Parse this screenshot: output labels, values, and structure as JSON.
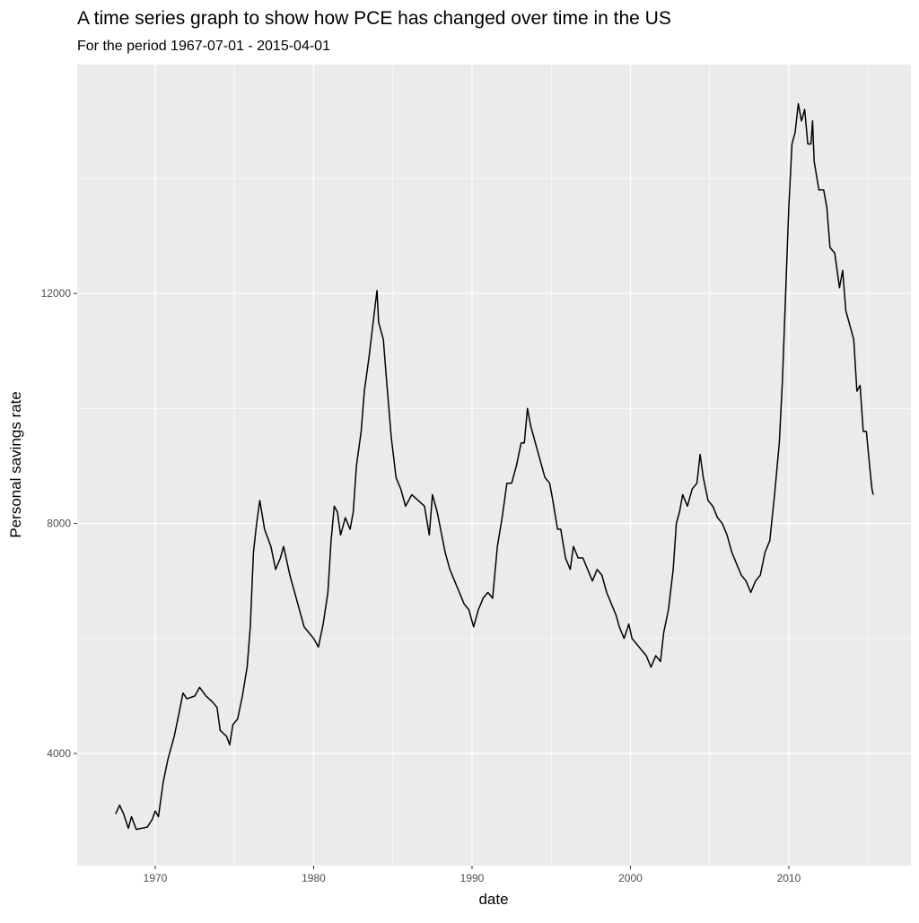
{
  "chart_data": {
    "type": "line",
    "title": "A time series graph to show how PCE has changed over time in the US",
    "subtitle": "For the period  1967-07-01  -  2015-04-01",
    "x_label": "date",
    "y_label": "Personal savings rate",
    "color": "#000000",
    "x": [
      1967.5,
      1967.75,
      1968.0,
      1968.3,
      1968.5,
      1968.8,
      1969.5,
      1969.8,
      1970.0,
      1970.2,
      1970.5,
      1970.8,
      1971.2,
      1971.5,
      1971.75,
      1972.0,
      1972.5,
      1972.8,
      1973.2,
      1973.6,
      1973.9,
      1974.1,
      1974.5,
      1974.7,
      1974.9,
      1975.2,
      1975.5,
      1975.8,
      1976.0,
      1976.2,
      1976.4,
      1976.6,
      1976.9,
      1977.3,
      1977.6,
      1977.9,
      1978.1,
      1978.5,
      1978.8,
      1979.1,
      1979.4,
      1979.7,
      1980.0,
      1980.3,
      1980.6,
      1980.9,
      1981.1,
      1981.3,
      1981.5,
      1981.7,
      1982.0,
      1982.3,
      1982.5,
      1982.7,
      1983.0,
      1983.2,
      1983.5,
      1983.8,
      1984.0,
      1984.1,
      1984.4,
      1984.6,
      1984.9,
      1985.2,
      1985.5,
      1985.8,
      1986.2,
      1986.6,
      1987.0,
      1987.3,
      1987.5,
      1987.8,
      1988.3,
      1988.6,
      1988.9,
      1989.2,
      1989.5,
      1989.8,
      1990.1,
      1990.4,
      1990.7,
      1991.0,
      1991.3,
      1991.6,
      1991.9,
      1992.2,
      1992.5,
      1992.8,
      1993.1,
      1993.3,
      1993.5,
      1993.7,
      1994.0,
      1994.3,
      1994.6,
      1994.9,
      1995.1,
      1995.4,
      1995.6,
      1995.9,
      1996.2,
      1996.4,
      1996.7,
      1997.0,
      1997.3,
      1997.6,
      1997.9,
      1998.2,
      1998.5,
      1998.8,
      1999.1,
      1999.3,
      1999.6,
      1999.9,
      2000.1,
      2000.4,
      2000.7,
      2001.0,
      2001.3,
      2001.6,
      2001.9,
      2002.1,
      2002.4,
      2002.7,
      2002.9,
      2003.1,
      2003.3,
      2003.6,
      2003.9,
      2004.2,
      2004.4,
      2004.6,
      2004.9,
      2005.2,
      2005.5,
      2005.8,
      2006.1,
      2006.4,
      2006.7,
      2007.0,
      2007.3,
      2007.6,
      2007.9,
      2008.2,
      2008.5,
      2008.8,
      2009.1,
      2009.4,
      2009.6,
      2009.8,
      2010.0,
      2010.2,
      2010.4,
      2010.6,
      2010.8,
      2011.0,
      2011.2,
      2011.4,
      2011.5,
      2011.6,
      2011.9,
      2012.2,
      2012.4,
      2012.6,
      2012.9,
      2013.2,
      2013.4,
      2013.6,
      2013.9,
      2014.1,
      2014.3,
      2014.5,
      2014.7,
      2014.9,
      2015.1,
      2015.25,
      2015.33
    ],
    "values": [
      2950,
      3100,
      2950,
      2700,
      2900,
      2680,
      2720,
      2850,
      3000,
      2900,
      3500,
      3900,
      4300,
      4700,
      5050,
      4950,
      5000,
      5150,
      5000,
      4900,
      4800,
      4400,
      4300,
      4150,
      4500,
      4600,
      5000,
      5500,
      6200,
      7500,
      8000,
      8400,
      7900,
      7600,
      7200,
      7400,
      7600,
      7100,
      6800,
      6500,
      6200,
      6100,
      6000,
      5850,
      6250,
      6800,
      7700,
      8300,
      8200,
      7800,
      8100,
      7900,
      8200,
      9000,
      9600,
      10300,
      10900,
      11600,
      12050,
      11500,
      11200,
      10500,
      9500,
      8800,
      8600,
      8300,
      8500,
      8400,
      8300,
      7800,
      8500,
      8200,
      7500,
      7200,
      7000,
      6800,
      6600,
      6500,
      6200,
      6500,
      6700,
      6800,
      6700,
      7600,
      8100,
      8700,
      8700,
      9000,
      9400,
      9400,
      10000,
      9700,
      9400,
      9100,
      8800,
      8700,
      8400,
      7900,
      7900,
      7400,
      7200,
      7600,
      7400,
      7400,
      7200,
      7000,
      7200,
      7100,
      6800,
      6600,
      6400,
      6200,
      6000,
      6250,
      6000,
      5900,
      5800,
      5700,
      5500,
      5700,
      5600,
      6100,
      6500,
      7200,
      8000,
      8200,
      8500,
      8300,
      8600,
      8700,
      9200,
      8800,
      8400,
      8300,
      8100,
      8000,
      7800,
      7500,
      7300,
      7100,
      7000,
      6800,
      7000,
      7100,
      7500,
      7700,
      8500,
      9400,
      10500,
      12000,
      13500,
      14600,
      14800,
      15300,
      15000,
      15200,
      14600,
      14600,
      15000,
      14300,
      13800,
      13800,
      13500,
      12800,
      12700,
      12100,
      12400,
      11700,
      11400,
      11200,
      10300,
      10400,
      9600,
      9600,
      9000,
      8600,
      8500
    ],
    "xlim": [
      1965.07,
      2017.71
    ],
    "xticks": [
      1970,
      1980,
      1990,
      2000,
      2010
    ],
    "xminorticks": [
      1975,
      1985,
      1995,
      2005,
      2015
    ],
    "ylim": [
      2050,
      15980
    ],
    "yticks": [
      4000,
      8000,
      12000
    ],
    "yminorticks": [
      6000,
      10000,
      14000
    ],
    "grid": true
  }
}
